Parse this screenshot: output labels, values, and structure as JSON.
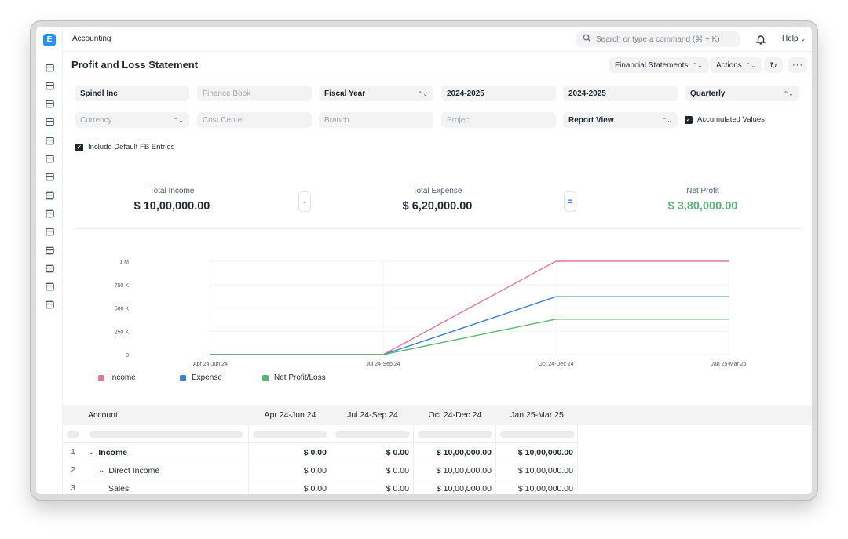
{
  "breadcrumb": "Accounting",
  "search": {
    "placeholder": "Search or type a command (⌘ + K)"
  },
  "help_label": "Help",
  "page_title": "Profit and Loss Statement",
  "header_buttons": {
    "financial_statements": "Financial Statements",
    "actions": "Actions"
  },
  "sidebar_icons": [
    "tools-icon",
    "cash-register-icon",
    "lock-bag-icon",
    "card-icon",
    "inbox-icon",
    "building-icon",
    "box-icon",
    "pie-chart-icon",
    "target-icon",
    "folder-icon",
    "headset-icon",
    "server-icon",
    "database-icon",
    "integration-icon"
  ],
  "filters": {
    "company": "Spindl Inc",
    "finance_book": "Finance Book",
    "filter_based_on": "Fiscal Year",
    "from_year": "2024-2025",
    "to_year": "2024-2025",
    "periodicity": "Quarterly",
    "currency": "Currency",
    "cost_center": "Cost Center",
    "branch": "Branch",
    "project": "Project",
    "report_view": "Report View",
    "accumulated_values": "Accumulated Values",
    "include_default_fb": "Include Default FB Entries"
  },
  "summary": {
    "income_label": "Total Income",
    "income_value": "$ 10,00,000.00",
    "minus": "-",
    "expense_label": "Total Expense",
    "expense_value": "$ 6,20,000.00",
    "equals": "=",
    "profit_label": "Net Profit",
    "profit_value": "$ 3,80,000.00",
    "profit_color": "#59b179"
  },
  "chart_data": {
    "type": "line",
    "categories": [
      "Apr 24-Jun 24",
      "Jul 24-Sep 24",
      "Oct 24-Dec 24",
      "Jan 25-Mar 25"
    ],
    "y_ticks": [
      {
        "value": 0,
        "label": "0"
      },
      {
        "value": 250000,
        "label": "250 K"
      },
      {
        "value": 500000,
        "label": "500 K"
      },
      {
        "value": 750000,
        "label": "750 K"
      },
      {
        "value": 1000000,
        "label": "1 M"
      }
    ],
    "ylim": [
      0,
      1000000
    ],
    "series": [
      {
        "name": "Income",
        "color": "#e07a93",
        "values": [
          0,
          0,
          1000000,
          1000000
        ]
      },
      {
        "name": "Expense",
        "color": "#3f7fca",
        "values": [
          0,
          0,
          620000,
          620000
        ]
      },
      {
        "name": "Net Profit/Loss",
        "color": "#5fb46f",
        "values": [
          0,
          0,
          380000,
          380000
        ]
      }
    ],
    "legend": "bottom-left"
  },
  "table": {
    "columns": [
      "Account",
      "Apr 24-Jun 24",
      "Jul 24-Sep 24",
      "Oct 24-Dec 24",
      "Jan 25-Mar 25"
    ],
    "rows": [
      {
        "num": "1",
        "account": "Income",
        "values": [
          "$ 0.00",
          "$ 0.00",
          "$ 10,00,000.00",
          "$ 10,00,000.00"
        ],
        "bold": true,
        "indent": 0,
        "toggle": true
      },
      {
        "num": "2",
        "account": "Direct Income",
        "values": [
          "$ 0.00",
          "$ 0.00",
          "$ 10,00,000.00",
          "$ 10,00,000.00"
        ],
        "bold": false,
        "indent": 1,
        "toggle": true
      },
      {
        "num": "3",
        "account": "Sales",
        "values": [
          "$ 0.00",
          "$ 0.00",
          "$ 10,00,000.00",
          "$ 10,00,000.00"
        ],
        "bold": false,
        "indent": 2,
        "toggle": false
      }
    ]
  }
}
